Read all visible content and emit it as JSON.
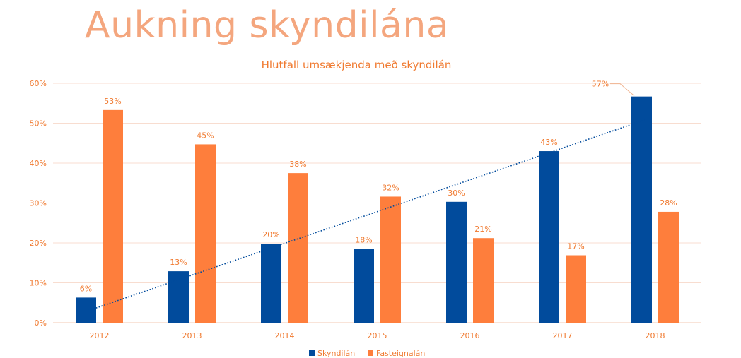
{
  "slide": {
    "title": "Aukning skyndilána"
  },
  "chart_data": {
    "type": "bar",
    "title": "Hlutfall umsækjenda með skyndilán",
    "categories": [
      "2012",
      "2013",
      "2014",
      "2015",
      "2016",
      "2017",
      "2018"
    ],
    "series": [
      {
        "name": "Skyndilán",
        "color": "#014b9c",
        "values": [
          6.3,
          12.9,
          19.8,
          18.5,
          30.3,
          43.0,
          56.7
        ],
        "labels": [
          "6%",
          "13%",
          "20%",
          "18%",
          "30%",
          "43%",
          "57%"
        ]
      },
      {
        "name": "Fasteignalán",
        "color": "#fe7e3c",
        "values": [
          53.3,
          44.7,
          37.5,
          31.6,
          21.2,
          16.9,
          27.8
        ],
        "labels": [
          "53%",
          "45%",
          "38%",
          "32%",
          "21%",
          "17%",
          "28%"
        ]
      }
    ],
    "trendline": {
      "series": "Skyndilán",
      "type": "linear",
      "color": "#014b9c",
      "style": "dotted",
      "start": 3.0,
      "end": 50.8
    },
    "yticks": [
      "0%",
      "10%",
      "20%",
      "30%",
      "40%",
      "50%",
      "60%"
    ],
    "ylim": [
      0,
      60
    ],
    "grid": true,
    "legend": "bottom",
    "colors": {
      "axis_text": "#f07a30",
      "grid": "#f8ddd0",
      "leader_line": "#f0b592"
    }
  }
}
